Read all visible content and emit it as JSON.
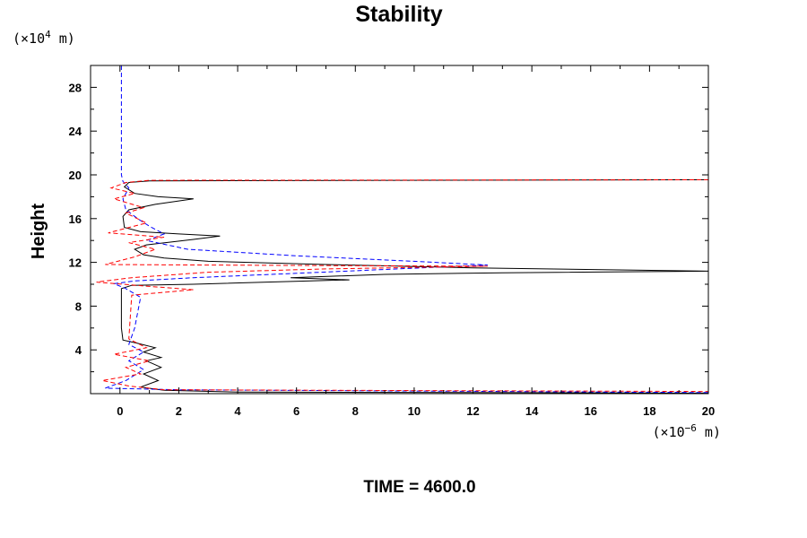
{
  "chart_data": {
    "type": "line",
    "title": "Stability",
    "xlabel": "",
    "ylabel": "Height",
    "x_unit": {
      "prefix": "(×10",
      "exp": "−6",
      "suffix": " m)"
    },
    "y_unit": {
      "prefix": "(×10",
      "exp": "4",
      "suffix": " m)"
    },
    "xlim": [
      -1,
      20
    ],
    "ylim": [
      0,
      30
    ],
    "x_ticks": [
      "0",
      "2",
      "4",
      "6",
      "8",
      "10",
      "12",
      "14",
      "16",
      "18",
      "20"
    ],
    "y_ticks": [
      "4",
      "8",
      "12",
      "16",
      "20",
      "24",
      "28"
    ],
    "grid": false,
    "series": [
      {
        "color": "#000000",
        "dash": "solid",
        "points": [
          [
            20,
            0.05
          ],
          [
            4,
            0.15
          ],
          [
            1.5,
            0.3
          ],
          [
            0.7,
            0.6
          ],
          [
            1.3,
            1.2
          ],
          [
            0.8,
            1.8
          ],
          [
            1.4,
            2.4
          ],
          [
            0.9,
            3.0
          ],
          [
            1.4,
            3.3
          ],
          [
            0.8,
            3.8
          ],
          [
            1.2,
            4.2
          ],
          [
            0.6,
            4.6
          ],
          [
            0.1,
            4.9
          ],
          [
            0.05,
            6.0
          ],
          [
            0.05,
            9.6
          ],
          [
            0.4,
            9.9
          ],
          [
            2.5,
            10.0
          ],
          [
            5,
            10.2
          ],
          [
            7.8,
            10.4
          ],
          [
            5.8,
            10.6
          ],
          [
            9,
            10.9
          ],
          [
            13,
            11.05
          ],
          [
            20,
            11.2
          ],
          [
            12,
            11.5
          ],
          [
            7,
            11.8
          ],
          [
            3,
            12.1
          ],
          [
            1.5,
            12.4
          ],
          [
            0.8,
            12.7
          ],
          [
            0.5,
            13.2
          ],
          [
            0.9,
            13.6
          ],
          [
            2.5,
            14.1
          ],
          [
            3.4,
            14.4
          ],
          [
            2.0,
            14.6
          ],
          [
            0.7,
            14.8
          ],
          [
            0.15,
            15.2
          ],
          [
            0.1,
            16.2
          ],
          [
            0.3,
            16.8
          ],
          [
            1.2,
            17.3
          ],
          [
            2.5,
            17.8
          ],
          [
            1.3,
            18.0
          ],
          [
            0.5,
            18.3
          ],
          [
            0.15,
            18.9
          ],
          [
            0.3,
            19.3
          ],
          [
            1,
            19.45
          ],
          [
            20,
            19.55
          ]
        ]
      },
      {
        "color": "#0000ff",
        "dash": "dashed",
        "points": [
          [
            0.05,
            30
          ],
          [
            0.05,
            20
          ],
          [
            0.1,
            19.4
          ],
          [
            0.3,
            18.8
          ],
          [
            0.1,
            17.8
          ],
          [
            0.2,
            16.8
          ],
          [
            0.6,
            16.0
          ],
          [
            1.0,
            15.3
          ],
          [
            1.5,
            14.6
          ],
          [
            0.9,
            14.0
          ],
          [
            2.3,
            13.2
          ],
          [
            6,
            12.6
          ],
          [
            10,
            12.1
          ],
          [
            12.5,
            11.75
          ],
          [
            9,
            11.35
          ],
          [
            6,
            11.0
          ],
          [
            2.5,
            10.6
          ],
          [
            0.5,
            10.3
          ],
          [
            -0.2,
            10.05
          ],
          [
            0.2,
            9.6
          ],
          [
            0.7,
            8.8
          ],
          [
            0.5,
            6.0
          ],
          [
            0.3,
            4.5
          ],
          [
            0.8,
            3.8
          ],
          [
            0.3,
            3.0
          ],
          [
            0.8,
            2.2
          ],
          [
            0.2,
            1.2
          ],
          [
            -0.5,
            0.5
          ],
          [
            2,
            0.35
          ],
          [
            20,
            0.1
          ]
        ]
      },
      {
        "color": "#ff0000",
        "dash": "dashed",
        "points": [
          [
            20,
            19.55
          ],
          [
            1,
            19.5
          ],
          [
            0.2,
            19.3
          ],
          [
            -0.3,
            18.8
          ],
          [
            0.5,
            18.3
          ],
          [
            -0.2,
            17.8
          ],
          [
            0.8,
            17.0
          ],
          [
            0.2,
            16.5
          ],
          [
            0.9,
            15.6
          ],
          [
            -0.4,
            14.7
          ],
          [
            1.5,
            14.3
          ],
          [
            0.3,
            13.8
          ],
          [
            1.2,
            13.2
          ],
          [
            0.5,
            12.5
          ],
          [
            -0.5,
            11.8
          ],
          [
            3,
            11.75
          ],
          [
            8,
            11.7
          ],
          [
            12.5,
            11.65
          ],
          [
            7,
            11.4
          ],
          [
            3,
            11.1
          ],
          [
            0.4,
            10.6
          ],
          [
            -0.8,
            10.2
          ],
          [
            1.0,
            9.8
          ],
          [
            2.5,
            9.5
          ],
          [
            0.4,
            9.0
          ],
          [
            0.3,
            5.0
          ],
          [
            0.9,
            4.2
          ],
          [
            -0.2,
            3.6
          ],
          [
            1.0,
            3.0
          ],
          [
            0.2,
            2.4
          ],
          [
            0.7,
            1.8
          ],
          [
            -0.6,
            1.2
          ],
          [
            0.3,
            0.7
          ],
          [
            1.5,
            0.35
          ],
          [
            20,
            0.2
          ]
        ]
      }
    ]
  },
  "footer": {
    "time_label": "TIME = 4600.0"
  }
}
